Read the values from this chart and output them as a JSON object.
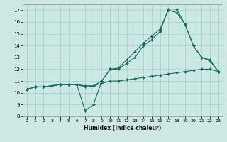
{
  "xlabel": "Humidex (Indice chaleur)",
  "background_color": "#cce8e4",
  "grid_color": "#aad4cf",
  "line_color": "#1a6b5e",
  "xlim": [
    -0.5,
    23.5
  ],
  "ylim": [
    8,
    17.5
  ],
  "xticks": [
    0,
    1,
    2,
    3,
    4,
    5,
    6,
    7,
    8,
    9,
    10,
    11,
    12,
    13,
    14,
    15,
    16,
    17,
    18,
    19,
    20,
    21,
    22,
    23
  ],
  "yticks": [
    8,
    9,
    10,
    11,
    12,
    13,
    14,
    15,
    16,
    17
  ],
  "series1_x": [
    0,
    1,
    2,
    3,
    4,
    5,
    6,
    7,
    8,
    9,
    10,
    11,
    12,
    13,
    14,
    15,
    16,
    17,
    18,
    19,
    20,
    21,
    22,
    23
  ],
  "series1_y": [
    10.3,
    10.5,
    10.5,
    10.6,
    10.7,
    10.7,
    10.7,
    10.6,
    10.6,
    10.8,
    11.0,
    11.0,
    11.1,
    11.2,
    11.3,
    11.4,
    11.5,
    11.6,
    11.7,
    11.8,
    11.9,
    12.0,
    12.0,
    11.8
  ],
  "series2_x": [
    0,
    1,
    2,
    3,
    4,
    5,
    6,
    7,
    8,
    9,
    10,
    11,
    12,
    13,
    14,
    15,
    16,
    17,
    18,
    19,
    20,
    21,
    22,
    23
  ],
  "series2_y": [
    10.3,
    10.5,
    10.5,
    10.6,
    10.7,
    10.7,
    10.7,
    8.5,
    9.0,
    11.0,
    12.0,
    12.0,
    12.5,
    13.0,
    14.0,
    14.5,
    15.2,
    17.1,
    17.1,
    15.8,
    14.0,
    13.0,
    12.7,
    11.8
  ],
  "series3_x": [
    0,
    1,
    2,
    3,
    4,
    5,
    6,
    7,
    8,
    9,
    10,
    11,
    12,
    13,
    14,
    15,
    16,
    17,
    18,
    19,
    20,
    21,
    22,
    23
  ],
  "series3_y": [
    10.3,
    10.5,
    10.5,
    10.6,
    10.7,
    10.7,
    10.7,
    10.5,
    10.6,
    11.0,
    12.0,
    12.1,
    12.8,
    13.5,
    14.2,
    14.8,
    15.4,
    17.0,
    16.8,
    15.8,
    14.0,
    13.0,
    12.8,
    11.8
  ]
}
